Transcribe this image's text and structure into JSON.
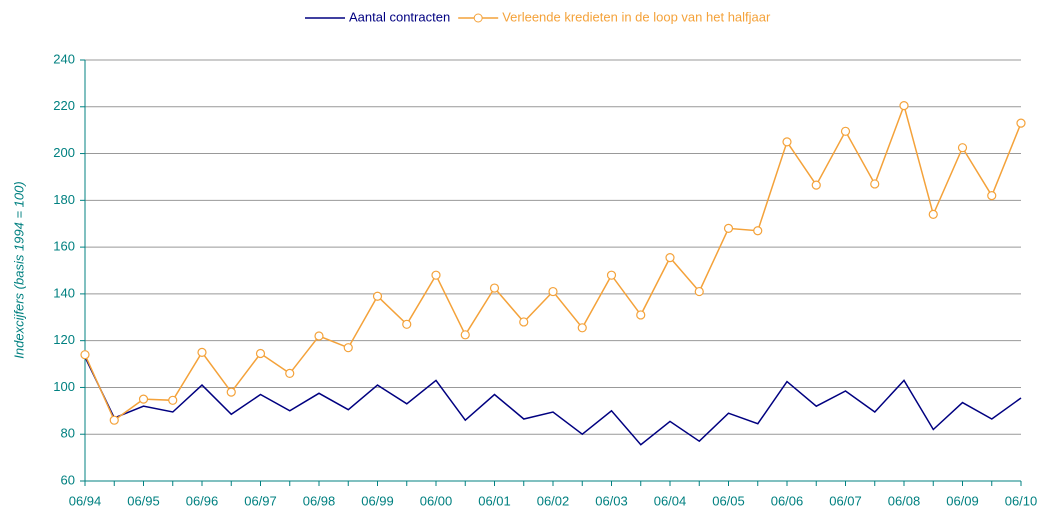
{
  "chart_data": {
    "type": "line",
    "y_label": "Indexcijfers (basis 1994 = 100)",
    "categories": [
      "06/94",
      null,
      "06/95",
      null,
      "06/96",
      null,
      "06/97",
      null,
      "06/98",
      null,
      "06/99",
      null,
      "06/00",
      null,
      "06/01",
      null,
      "06/02",
      null,
      "06/03",
      null,
      "06/04",
      null,
      "06/05",
      null,
      "06/06",
      null,
      "06/07",
      null,
      "06/08",
      null,
      "06/09",
      null,
      "06/10"
    ],
    "series": [
      {
        "name": "Aantal contracten",
        "color": "#000080",
        "marker": false,
        "values": [
          113,
          87,
          92,
          89.5,
          101,
          88.5,
          97,
          90,
          97.5,
          90.5,
          101,
          93,
          103,
          86,
          97,
          86.5,
          89.5,
          80,
          90,
          75.5,
          85.5,
          77,
          89,
          84.5,
          102.5,
          92,
          98.5,
          89.5,
          103,
          82,
          93.5,
          86.5,
          95.5
        ]
      },
      {
        "name": "Verleende kredieten in de loop van het halfjaar",
        "color": "#f4a23a",
        "marker": true,
        "values": [
          114,
          86,
          95,
          94.5,
          115,
          98,
          114.5,
          106,
          122,
          117,
          139,
          127,
          148,
          122.5,
          142.5,
          128,
          141,
          125.5,
          148,
          131,
          155.5,
          141,
          168,
          167,
          205,
          186.5,
          209.5,
          187,
          220.5,
          174,
          202.5,
          182,
          213
        ]
      }
    ],
    "ylim": [
      60,
      240
    ],
    "yticks": [
      60,
      80,
      100,
      120,
      140,
      160,
      180,
      200,
      220,
      240
    ],
    "grid": true
  }
}
